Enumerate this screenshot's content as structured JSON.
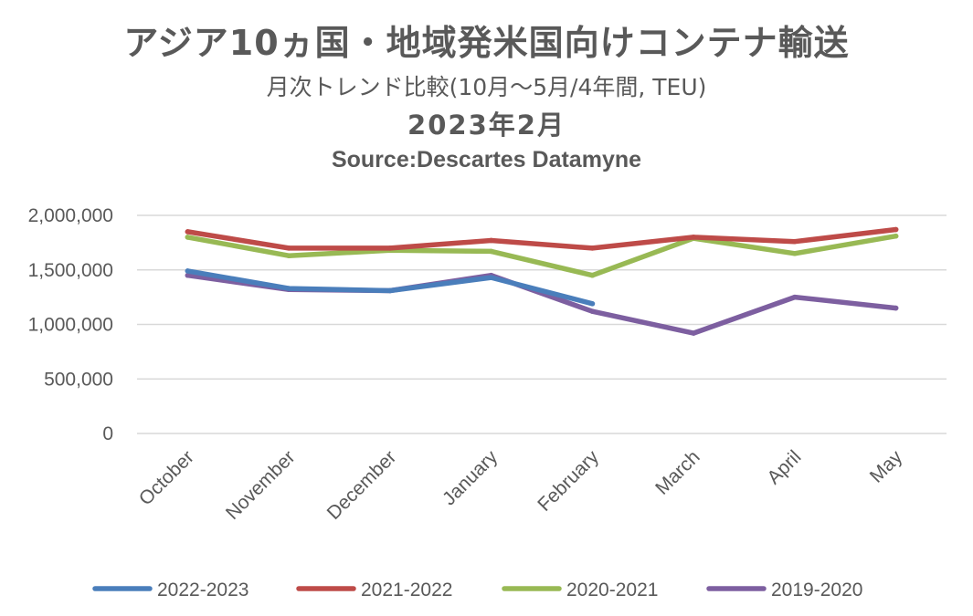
{
  "titles": {
    "main": "アジア10ヵ国・地域発米国向けコンテナ輸送",
    "sub": "月次トレンド比較(10月〜5月/4年間, TEU)",
    "date": "2023年2月",
    "source": "Source:Descartes Datamyne"
  },
  "chart_data": {
    "type": "line",
    "title": "アジア10ヵ国・地域発米国向けコンテナ輸送",
    "subtitle": "月次トレンド比較(10月〜5月/4年間, TEU)",
    "xlabel": "",
    "ylabel": "",
    "categories": [
      "October",
      "November",
      "December",
      "January",
      "February",
      "March",
      "April",
      "May"
    ],
    "ylim": [
      0,
      2000000
    ],
    "yticks": [
      0,
      500000,
      1000000,
      1500000,
      2000000
    ],
    "ytick_labels": [
      "0",
      "500,000",
      "1,000,000",
      "1,500,000",
      "2,000,000"
    ],
    "grid": true,
    "legend_position": "bottom",
    "series": [
      {
        "name": "2022-2023",
        "color": "#4a7ebb",
        "values": [
          1490000,
          1330000,
          1310000,
          1430000,
          1190000,
          null,
          null,
          null
        ]
      },
      {
        "name": "2021-2022",
        "color": "#be4b48",
        "values": [
          1850000,
          1700000,
          1700000,
          1770000,
          1700000,
          1800000,
          1760000,
          1870000
        ]
      },
      {
        "name": "2020-2021",
        "color": "#98b954",
        "values": [
          1800000,
          1630000,
          1680000,
          1670000,
          1450000,
          1790000,
          1650000,
          1810000
        ]
      },
      {
        "name": "2019-2020",
        "color": "#7d5fa0",
        "values": [
          1450000,
          1320000,
          1310000,
          1450000,
          1120000,
          920000,
          1250000,
          1150000
        ]
      }
    ]
  }
}
